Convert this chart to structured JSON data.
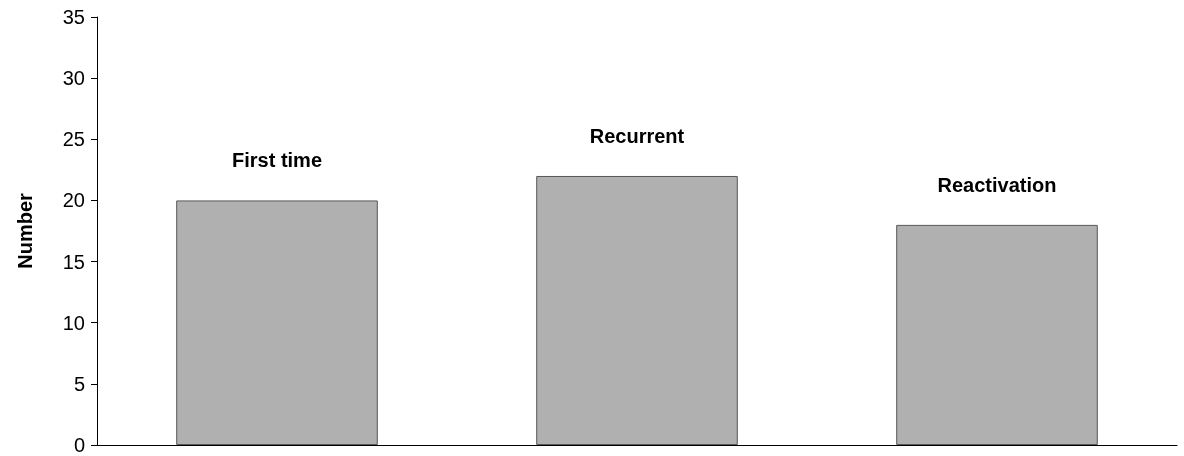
{
  "chart_data": {
    "type": "bar",
    "ylabel": "Number",
    "categories": [
      "First time",
      "Recurrent",
      "Reactivation"
    ],
    "values": [
      20,
      22,
      18
    ],
    "color": "#b0b0b0",
    "ylim": [
      0,
      35
    ],
    "yticks": [
      0,
      5,
      10,
      15,
      20,
      25,
      30,
      35
    ],
    "grid": false
  }
}
